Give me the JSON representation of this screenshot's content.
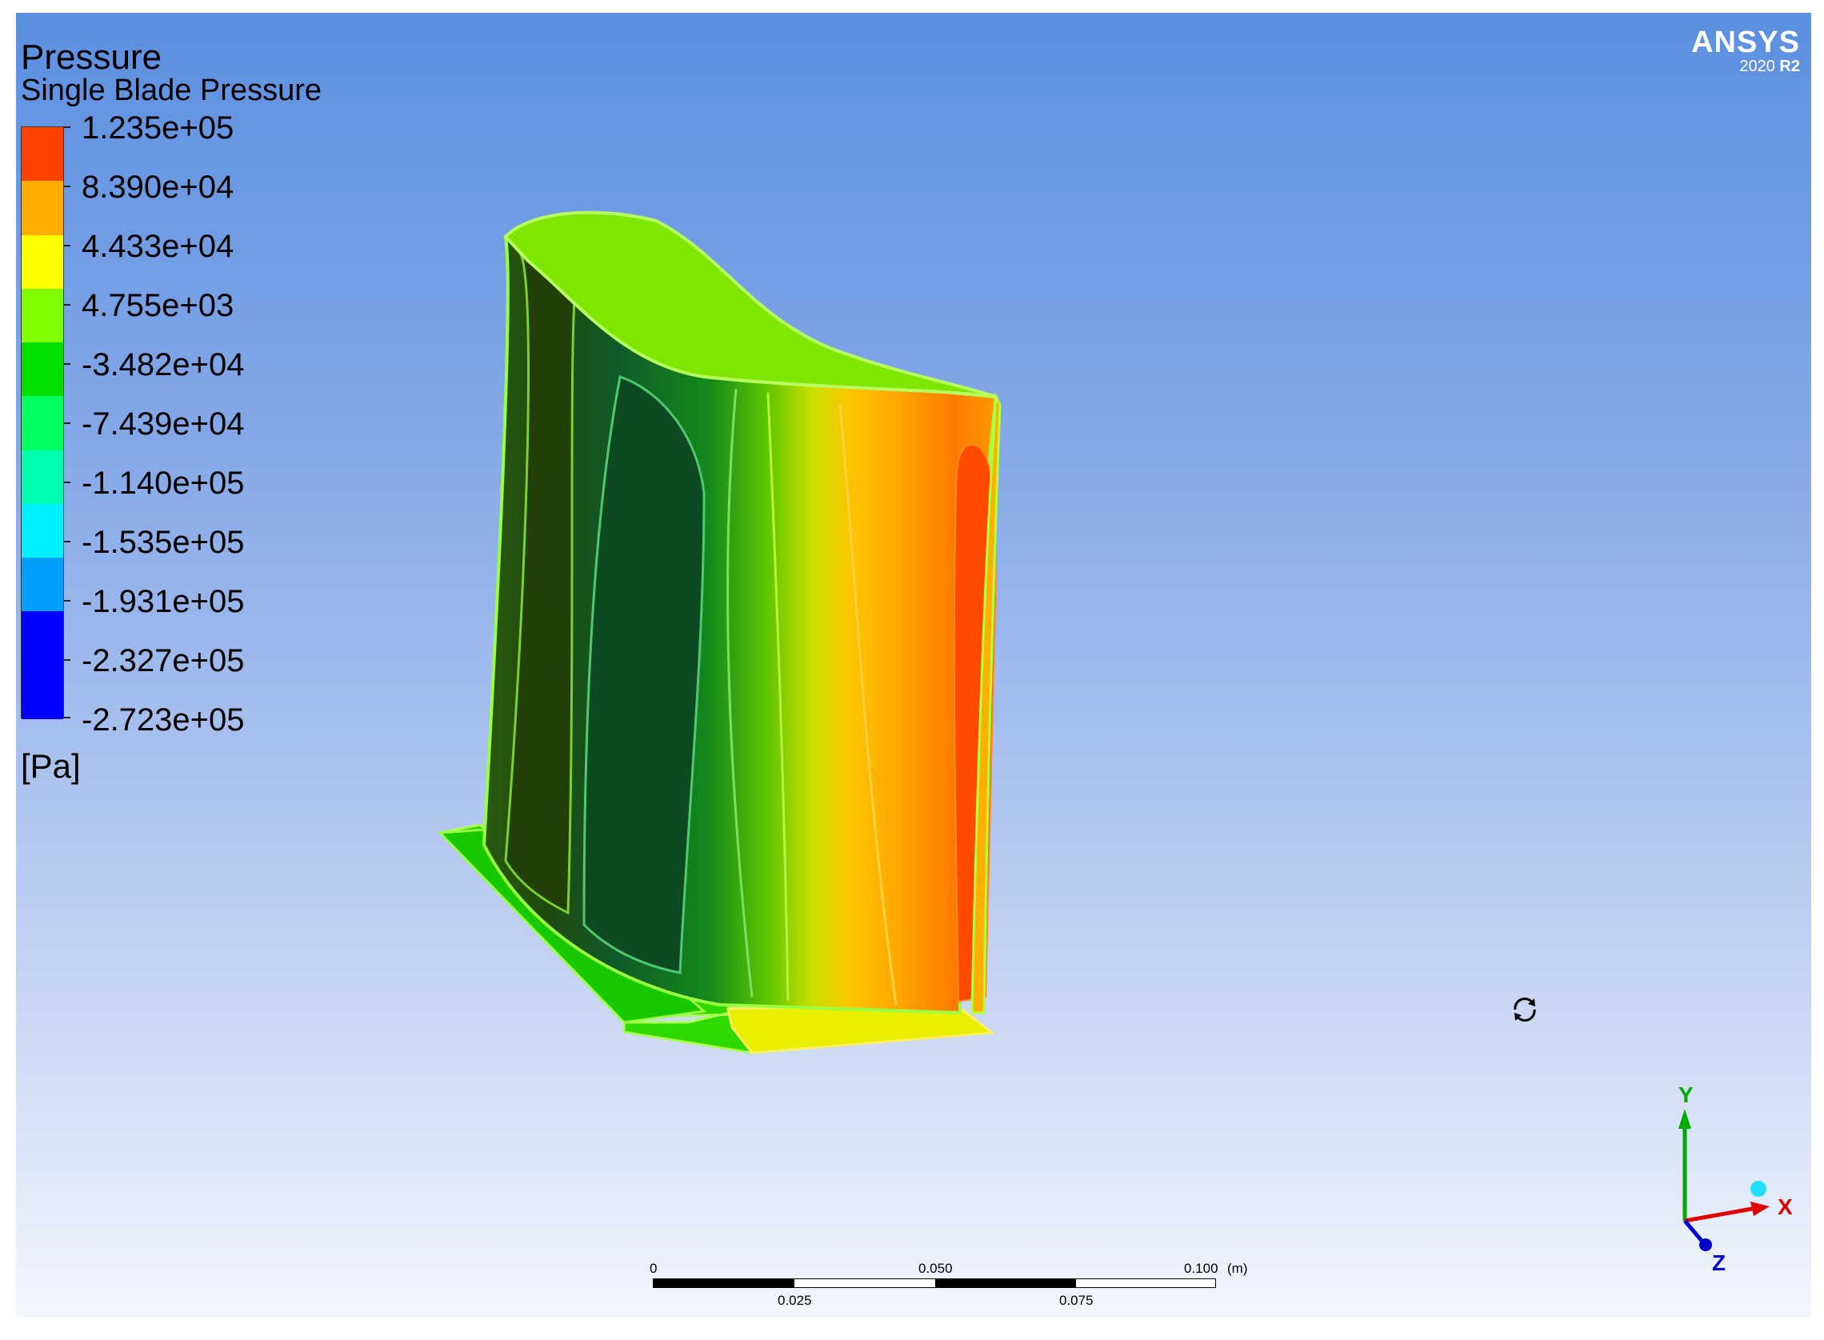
{
  "legend": {
    "title": "Pressure",
    "subtitle": "Single Blade Pressure",
    "unit": "[Pa]",
    "labels": [
      "1.235e+05",
      "8.390e+04",
      "4.433e+04",
      "4.755e+03",
      "-3.482e+04",
      "-7.439e+04",
      "-1.140e+05",
      "-1.535e+05",
      "-1.931e+05",
      "-2.327e+05",
      "-2.723e+05"
    ],
    "colors": [
      "#ff4200",
      "#ffad00",
      "#ffff00",
      "#80ff00",
      "#00e000",
      "#00ff60",
      "#00ffb0",
      "#00f0ff",
      "#00a0ff",
      "#0000ff"
    ]
  },
  "logo": {
    "name": "ANSYS",
    "version": "2020",
    "release": "R2"
  },
  "axes": {
    "x": "X",
    "y": "Y",
    "z": "Z"
  },
  "scale": {
    "t0": "0",
    "t1": "0.050",
    "t2": "0.100",
    "unit": "(m)",
    "b1": "0.025",
    "b2": "0.075"
  },
  "icons": {
    "rotate": "rotate-icon"
  }
}
